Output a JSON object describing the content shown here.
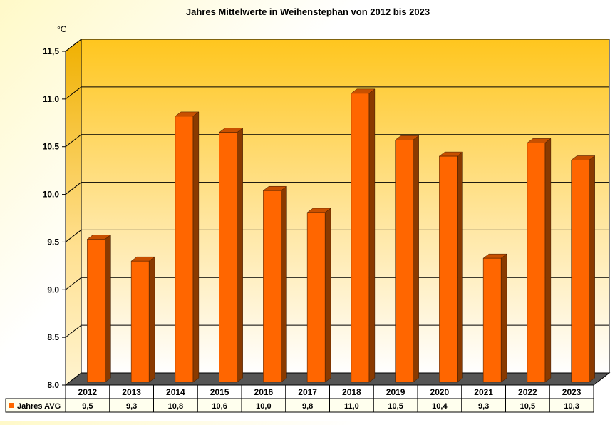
{
  "chart_data": {
    "type": "bar",
    "title": "Jahres Mittelwerte in Weihenstephan von 2012 bis 2023",
    "unit_label": "°C",
    "xlabel": "",
    "ylabel": "",
    "ylim": [
      8.0,
      11.5
    ],
    "yticks": [
      "8.0",
      "8.5",
      "9.0",
      "9.5",
      "10.0",
      "10.5",
      "11.0",
      "11,5"
    ],
    "categories": [
      "2012",
      "2013",
      "2014",
      "2015",
      "2016",
      "2017",
      "2018",
      "2019",
      "2020",
      "2021",
      "2022",
      "2023"
    ],
    "series": [
      {
        "name": "Jahres AVG",
        "values": [
          9.5,
          9.27,
          10.79,
          10.62,
          10.01,
          9.78,
          11.03,
          10.54,
          10.37,
          9.3,
          10.51,
          10.33
        ],
        "labels": [
          "9,5",
          "9,3",
          "10,8",
          "10,6",
          "10,0",
          "9,8",
          "11,0",
          "10,5",
          "10,4",
          "9,3",
          "10,5",
          "10,3"
        ]
      }
    ],
    "grid": true,
    "legend": "bottom-left (data table)",
    "colors": {
      "bar_front": "#ff6600",
      "bar_side": "#8a3a00",
      "bar_top": "#c85000",
      "wall_top": "#ffc61e",
      "wall_bottom": "#ffffff",
      "floor": "#555555"
    }
  }
}
